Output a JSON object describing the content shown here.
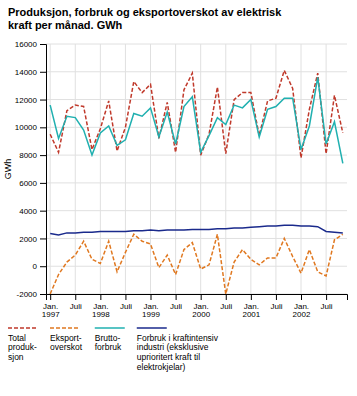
{
  "chart_data": {
    "type": "line",
    "title": "Produksjon, forbruk og eksportoverskot av elektrisk\nkraft per månad. GWh",
    "y_label": "GWh",
    "categories": [
      "Jan.\n1997",
      null,
      null,
      "Juli",
      null,
      null,
      "Jan.\n1998",
      null,
      null,
      "Juli",
      null,
      null,
      "Jan.\n1999",
      null,
      null,
      "Juli",
      null,
      null,
      "Jan.\n2000",
      null,
      null,
      "Juli",
      null,
      null,
      "Jan.\n2001",
      null,
      null,
      "Juli",
      null,
      null,
      "Jan.\n2002",
      null,
      null,
      "Juli",
      null,
      null
    ],
    "series": [
      {
        "name": "Total\nproduk-\nsjon",
        "color": "#c0392b",
        "line_style": "dashed",
        "values": [
          9500,
          8200,
          11200,
          11600,
          11500,
          8400,
          9900,
          11900,
          8300,
          10000,
          13300,
          12500,
          13100,
          9200,
          11800,
          8200,
          12700,
          13900,
          8000,
          9500,
          12900,
          8100,
          12000,
          12500,
          12500,
          9400,
          11900,
          12100,
          14100,
          12800,
          7800,
          11300,
          13900,
          8100,
          12300,
          9600
        ]
      },
      {
        "name": "Eksport-\noverskot",
        "color": "#e07820",
        "line_style": "dashed",
        "values": [
          -2000,
          -600,
          300,
          800,
          1800,
          500,
          200,
          1800,
          -400,
          1000,
          2300,
          1800,
          1600,
          -100,
          800,
          -600,
          1200,
          1700,
          -200,
          100,
          2300,
          -2000,
          300,
          1200,
          500,
          100,
          600,
          600,
          2000,
          700,
          -500,
          1200,
          -400,
          -700,
          1900,
          2300
        ]
      },
      {
        "name": "Brutto-\nforbruk",
        "color": "#20b0b0",
        "line_style": "solid",
        "values": [
          11600,
          9200,
          10800,
          10700,
          9800,
          8000,
          9600,
          10100,
          8700,
          9100,
          11000,
          10800,
          11400,
          9300,
          11100,
          8800,
          11500,
          12200,
          8200,
          9400,
          10700,
          10200,
          11600,
          11400,
          12000,
          9300,
          11300,
          11500,
          12100,
          12100,
          8400,
          10100,
          13600,
          8800,
          10400,
          7400
        ]
      },
      {
        "name": "Forbruk i kraftintensiv\nindustri (eksklusive\nuprioritert kraft til\nelektrokjelar)",
        "color": "#1a2a8c",
        "line_style": "solid",
        "values": [
          2350,
          2250,
          2400,
          2400,
          2450,
          2450,
          2500,
          2500,
          2500,
          2500,
          2550,
          2550,
          2600,
          2550,
          2600,
          2600,
          2600,
          2650,
          2650,
          2650,
          2700,
          2700,
          2750,
          2750,
          2800,
          2850,
          2900,
          2900,
          2950,
          2950,
          2900,
          2900,
          2850,
          2500,
          2450,
          2400
        ]
      }
    ],
    "ylim": [
      -2000,
      16000
    ],
    "yticks": [
      -2000,
      0,
      2000,
      4000,
      6000,
      8000,
      10000,
      12000,
      14000,
      16000
    ],
    "grid": true,
    "legend": "bottom"
  }
}
